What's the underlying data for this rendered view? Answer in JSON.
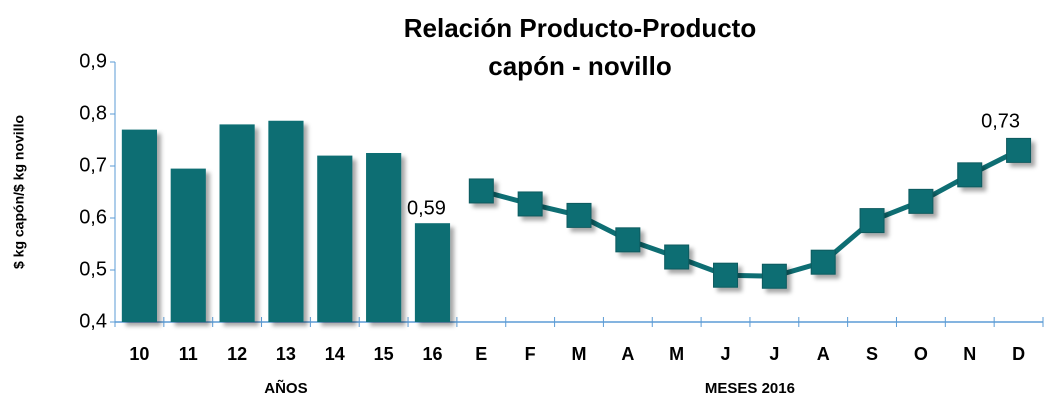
{
  "chart_data": {
    "type": "combo",
    "title": "Relación Producto-Producto",
    "subtitle": "capón - novillo",
    "y_label": "$ kg capón/$ kg novillo",
    "categories": [
      "10",
      "11",
      "12",
      "13",
      "14",
      "15",
      "16",
      "E",
      "F",
      "M",
      "A",
      "M",
      "J",
      "J",
      "A",
      "S",
      "O",
      "N",
      "D"
    ],
    "groups": [
      {
        "label": "AÑOS",
        "span": [
          0,
          6
        ]
      },
      {
        "label": "MESES 2016",
        "span": [
          7,
          18
        ]
      }
    ],
    "series": [
      {
        "type": "bar",
        "color": "#0e6e73",
        "values": [
          0.77,
          0.695,
          0.78,
          0.787,
          0.72,
          0.725,
          0.59,
          null,
          null,
          null,
          null,
          null,
          null,
          null,
          null,
          null,
          null,
          null,
          null
        ],
        "value_labels": [
          null,
          null,
          null,
          null,
          null,
          null,
          "0,59",
          null,
          null,
          null,
          null,
          null,
          null,
          null,
          null,
          null,
          null,
          null,
          null
        ]
      },
      {
        "type": "line",
        "color": "#0e6e73",
        "values": [
          null,
          null,
          null,
          null,
          null,
          null,
          null,
          0.652,
          0.627,
          0.605,
          0.558,
          0.525,
          0.49,
          0.488,
          0.515,
          0.595,
          0.632,
          0.683,
          0.73
        ],
        "value_labels": [
          null,
          null,
          null,
          null,
          null,
          null,
          null,
          null,
          null,
          null,
          null,
          null,
          null,
          null,
          null,
          null,
          null,
          null,
          "0,73"
        ]
      }
    ],
    "ylim": [
      0.4,
      0.9
    ],
    "yticks": [
      {
        "value": 0.4,
        "label": "0,4"
      },
      {
        "value": 0.5,
        "label": "0,5"
      },
      {
        "value": 0.6,
        "label": "0,6"
      },
      {
        "value": 0.7,
        "label": "0,7"
      },
      {
        "value": 0.8,
        "label": "0,8"
      },
      {
        "value": 0.9,
        "label": "0,9"
      }
    ],
    "grid": false
  }
}
